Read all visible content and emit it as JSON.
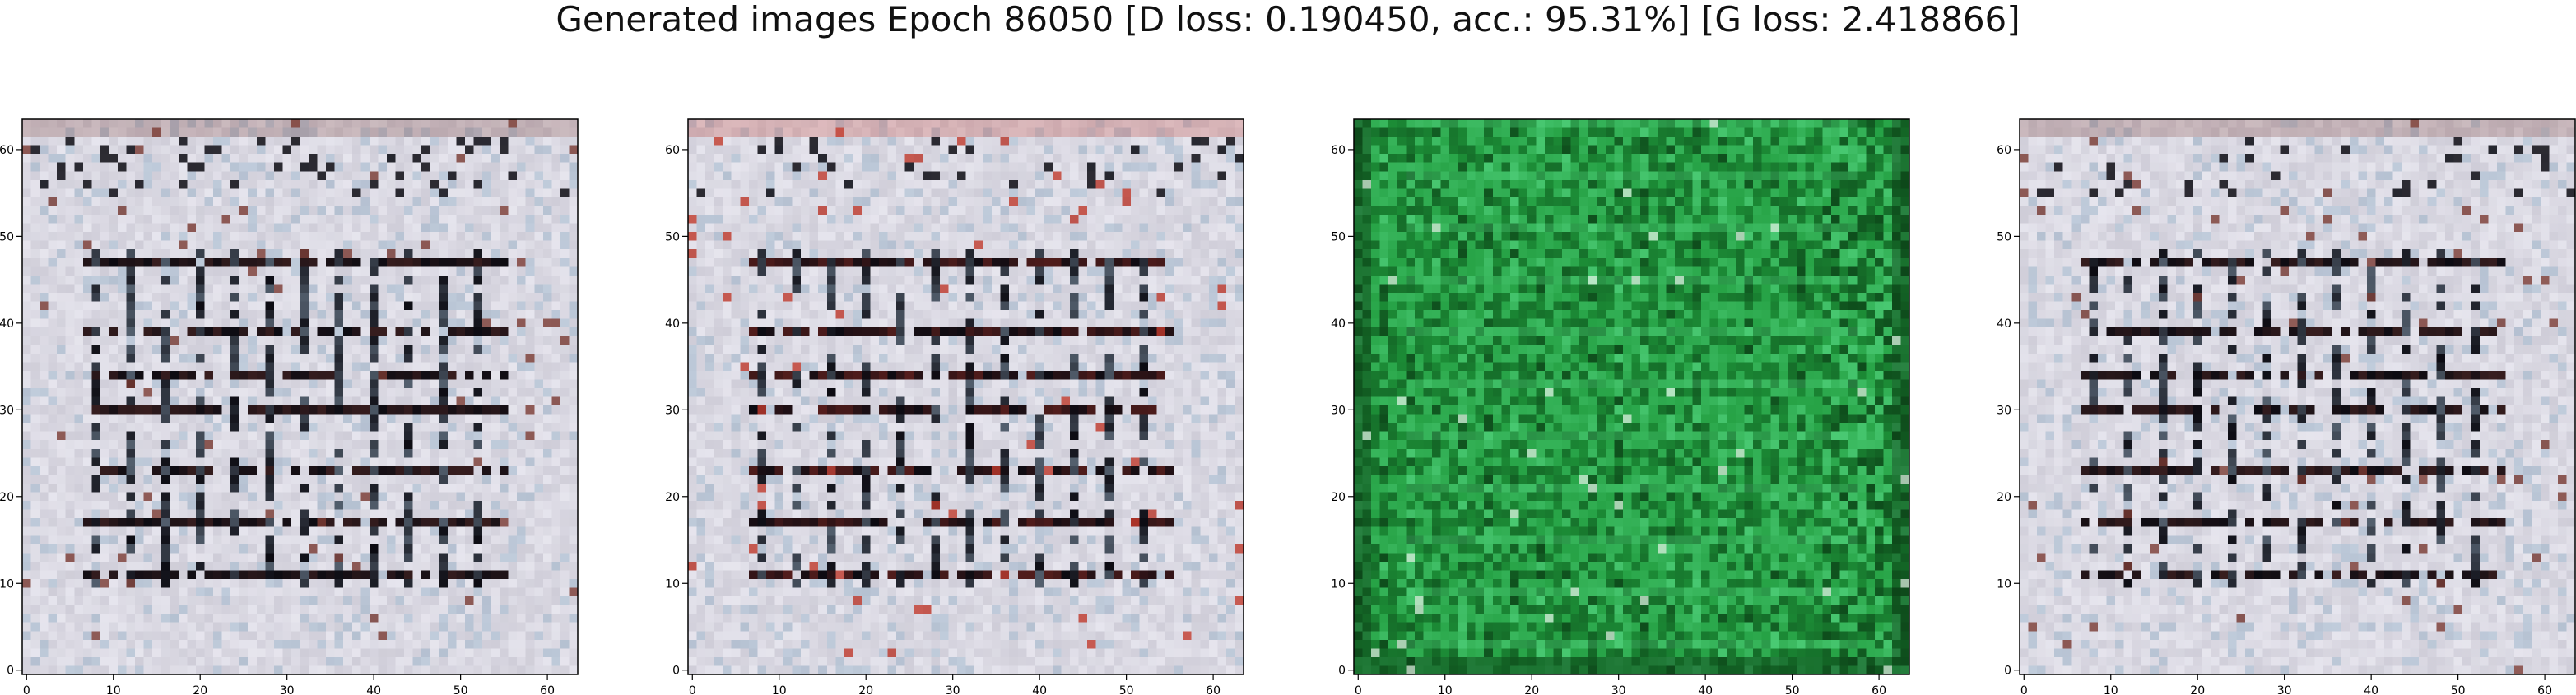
{
  "figure": {
    "title": "Generated images Epoch 86050 [D loss: 0.190450, acc.: 95.31%] [G loss: 2.418866]"
  },
  "chart_data": [
    {
      "type": "heatmap",
      "name": "generated-image-1",
      "grid_size": [
        64,
        64
      ],
      "xlim": [
        -0.5,
        63.5
      ],
      "ylim": [
        63.5,
        -0.5
      ],
      "xticks": [
        0,
        10,
        20,
        30,
        40,
        50,
        60
      ],
      "yticks": [
        0,
        10,
        20,
        30,
        40,
        50,
        60
      ],
      "palette": "pale-gray-lavender",
      "colors": {
        "base": "#cfcdd8",
        "light": "#ecebf3",
        "dark": "#0c0b12",
        "accent": "#7a3a32",
        "tint": "#9ab3c9"
      }
    },
    {
      "type": "heatmap",
      "name": "generated-image-2",
      "grid_size": [
        64,
        64
      ],
      "xlim": [
        -0.5,
        63.5
      ],
      "ylim": [
        63.5,
        -0.5
      ],
      "xticks": [
        0,
        10,
        20,
        30,
        40,
        50,
        60
      ],
      "yticks": [
        0,
        10,
        20,
        30,
        40,
        50,
        60
      ],
      "palette": "pale-gray-lavender",
      "colors": {
        "base": "#cfcdd8",
        "light": "#ecebf3",
        "dark": "#0c0b12",
        "accent": "#c0392b",
        "tint": "#9ab3c9"
      }
    },
    {
      "type": "heatmap",
      "name": "generated-image-3",
      "grid_size": [
        64,
        64
      ],
      "xlim": [
        -0.5,
        63.5
      ],
      "ylim": [
        63.5,
        -0.5
      ],
      "xticks": [
        0,
        10,
        20,
        30,
        40,
        50,
        60
      ],
      "yticks": [
        0,
        10,
        20,
        30,
        40,
        50,
        60
      ],
      "palette": "green",
      "colors": {
        "base": "#1f9a3c",
        "light": "#4fd07a",
        "dark": "#0b3f16",
        "accent": "#e8f5ea",
        "tint": "#33c07a"
      }
    },
    {
      "type": "heatmap",
      "name": "generated-image-4",
      "grid_size": [
        64,
        64
      ],
      "xlim": [
        -0.5,
        63.5
      ],
      "ylim": [
        63.5,
        -0.5
      ],
      "xticks": [
        0,
        10,
        20,
        30,
        40,
        50,
        60
      ],
      "yticks": [
        0,
        10,
        20,
        30,
        40,
        50,
        60
      ],
      "palette": "pale-gray-lavender",
      "colors": {
        "base": "#cfcdd8",
        "light": "#ecebf3",
        "dark": "#0c0b12",
        "accent": "#7a3a32",
        "tint": "#9ab3c9"
      }
    }
  ]
}
